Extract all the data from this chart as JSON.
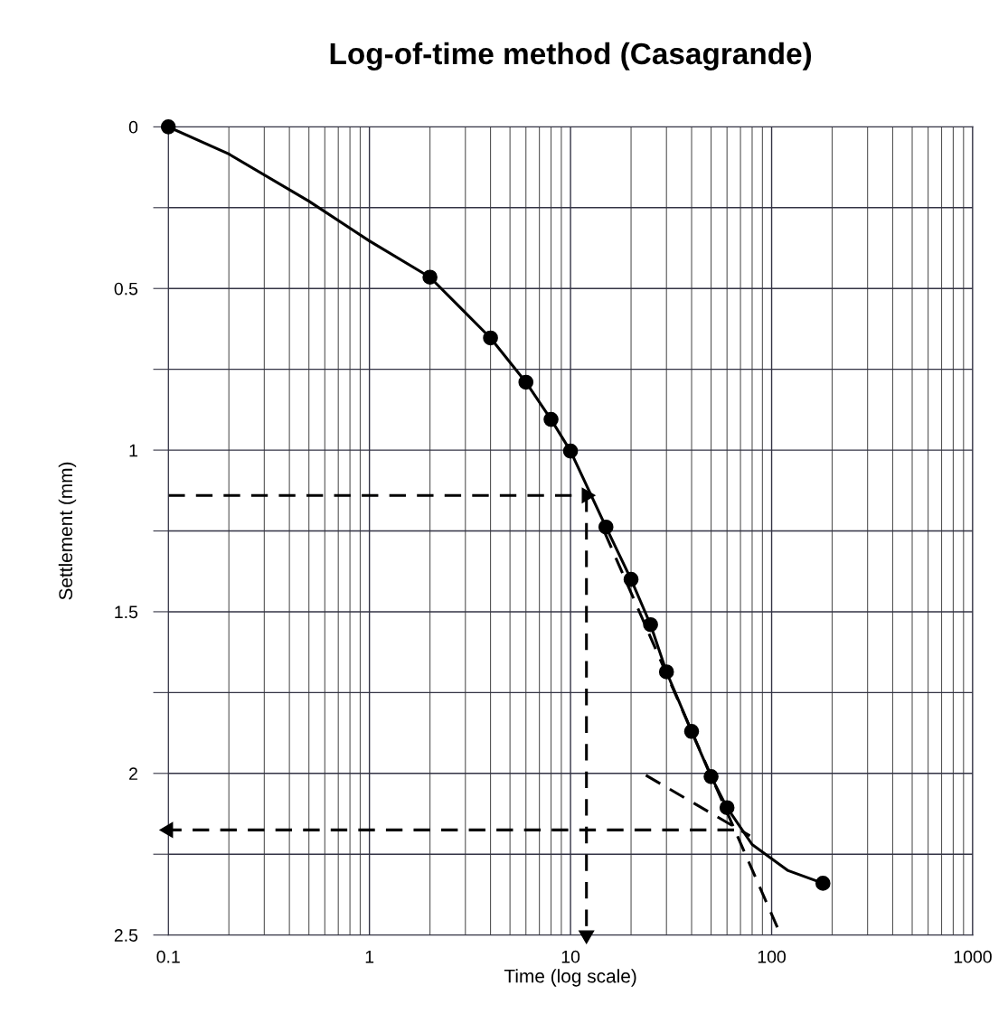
{
  "chart_data": {
    "type": "scatter",
    "title": "Log-of-time method (Casagrande)",
    "xlabel": "Time (log scale)",
    "ylabel": "Settlement (mm)",
    "log": "x",
    "xlim": [
      0.1,
      1000
    ],
    "xticks": [
      0.1,
      1,
      10,
      100,
      1000
    ],
    "ylim": [
      2.5,
      0
    ],
    "yticks": [
      0,
      {
        "value": 0.25,
        "label": null
      },
      0.5,
      {
        "value": 0.75,
        "label": null
      },
      1,
      {
        "value": 1.25,
        "label": null
      },
      1.5,
      {
        "value": 1.75,
        "label": null
      },
      2,
      {
        "value": 2.25,
        "label": null
      },
      2.5
    ],
    "grid": true,
    "marker": "circle",
    "series": [
      {
        "type": "line",
        "color": "#000000",
        "line_style": "solid",
        "marker": "none",
        "x": [
          0.1,
          0.2,
          0.5,
          1,
          2,
          4,
          6,
          8,
          10,
          15,
          20,
          25,
          30,
          40,
          50,
          60,
          80,
          120,
          180
        ],
        "values": [
          0,
          0.084,
          0.23,
          0.353,
          0.465,
          0.653,
          0.79,
          0.905,
          1.003,
          1.238,
          1.4,
          1.54,
          1.686,
          1.87,
          2.01,
          2.106,
          2.22,
          2.3,
          2.34
        ]
      },
      {
        "color": "#000000",
        "x": [
          0.1,
          2,
          4,
          6,
          8,
          10,
          15,
          20,
          25,
          30,
          40,
          50,
          60,
          180
        ],
        "values": [
          0,
          0.465,
          0.653,
          0.79,
          0.905,
          1.003,
          1.238,
          1.4,
          1.54,
          1.686,
          1.87,
          2.01,
          2.106,
          2.34
        ]
      },
      {
        "type": "line",
        "color": "#000000",
        "line_style": "dashed",
        "marker": "none",
        "x": [
          14.8,
          111
        ],
        "values": [
          1.255,
          2.5
        ]
      },
      {
        "type": "line",
        "color": "#000000",
        "line_style": "dashed",
        "marker": "none",
        "x": [
          23.7,
          78
        ],
        "values": [
          2.006,
          2.193
        ]
      },
      {
        "type": "line",
        "color": "#000000",
        "line_style": "dashed",
        "marker": "triangle",
        "x": [
          0.1,
          12
        ],
        "values": [
          1.14,
          1.14
        ]
      },
      {
        "type": "line",
        "color": "#000000",
        "line_style": "dashed",
        "marker": "triangle",
        "x": [
          12,
          12
        ],
        "values": [
          1.14,
          2.5
        ]
      },
      {
        "type": "line",
        "color": "#000000",
        "line_style": "dashed",
        "marker": "triangle",
        "x": [
          65,
          0.1
        ],
        "values": [
          2.175,
          2.175
        ]
      }
    ]
  }
}
